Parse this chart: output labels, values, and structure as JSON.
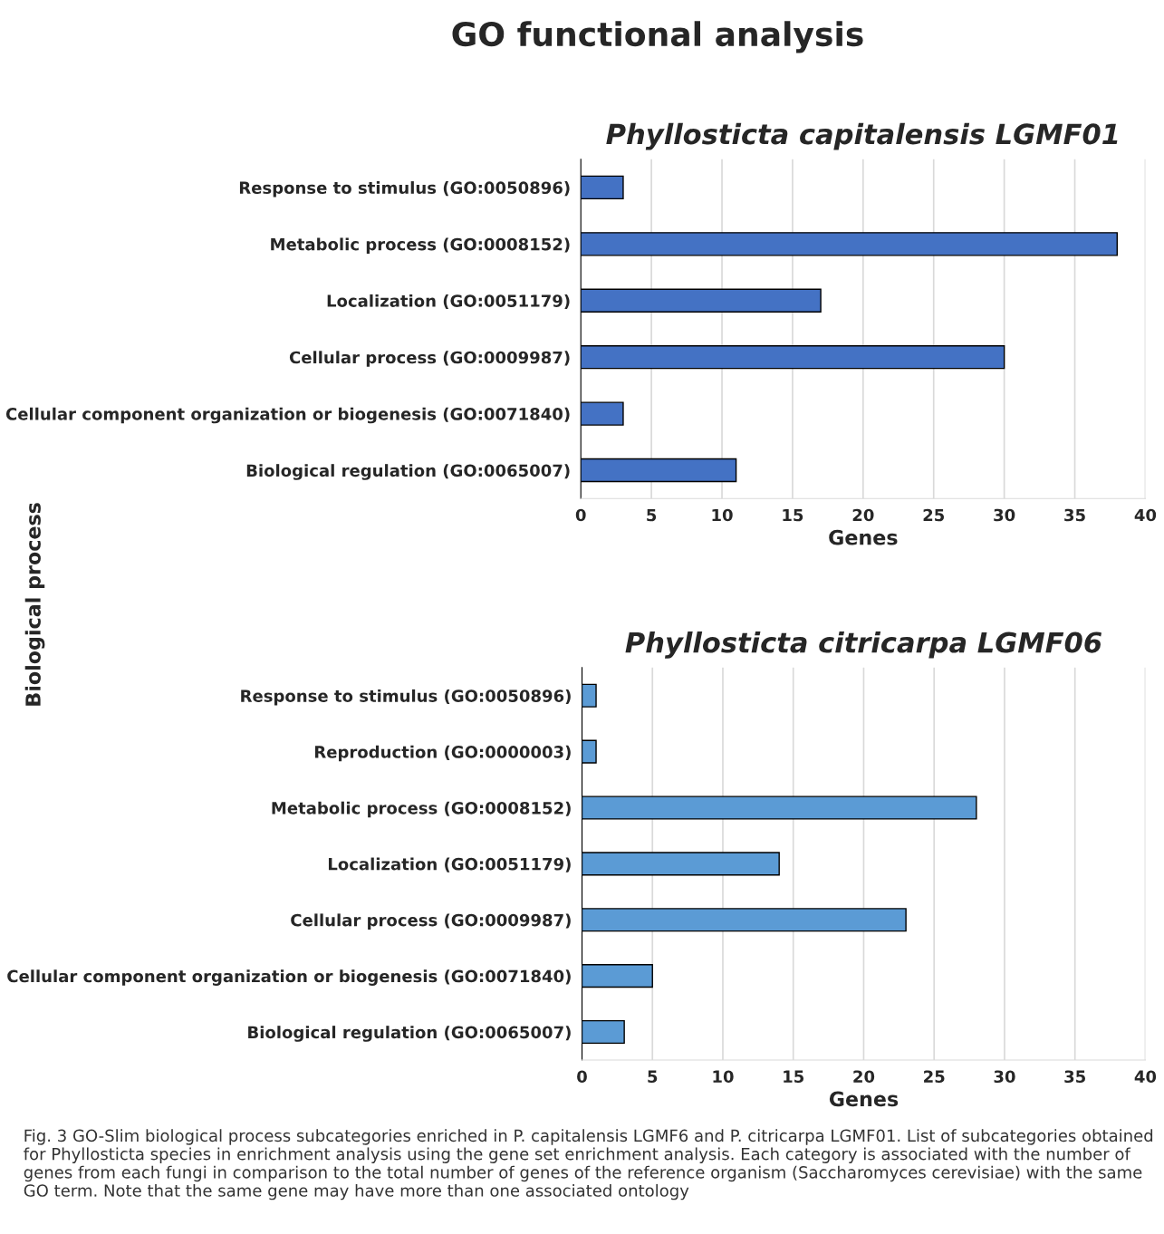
{
  "chart_data": [
    {
      "type": "bar",
      "orientation": "horizontal",
      "title": "Phyllosticta capitalensis LGMF01",
      "xlabel": "Genes",
      "ylabel": "Biological process",
      "annotations": [
        "GO functional analysis"
      ],
      "categories": [
        "Response to stimulus (GO:0050896)",
        "Metabolic process (GO:0008152)",
        "Localization (GO:0051179)",
        "Cellular process (GO:0009987)",
        "Cellular component organization or biogenesis (GO:0071840)",
        "Biological regulation (GO:0065007)"
      ],
      "series": [
        {
          "color": "#4472c4",
          "values": [
            3,
            38,
            17,
            30,
            3,
            11
          ]
        }
      ],
      "xlim": [
        0,
        40
      ],
      "xticks": [
        0,
        5,
        10,
        15,
        20,
        25,
        30,
        35,
        40
      ],
      "grid": "x",
      "legend": false
    },
    {
      "type": "bar",
      "orientation": "horizontal",
      "title": "Phyllosticta citricarpa LGMF06",
      "xlabel": "Genes",
      "annotations": [
        "Fig. 3 GO-Slim biological process subcategories enriched in P. capitalensis LGMF6 and P. citricarpa LGMF01. List of subcategories obtained for Phyllosticta species in enrichment analysis using the gene set enrichment analysis. Each category is associated with the number of genes from each fungi in comparison to the total number of genes of the reference organism (Saccharomyces cerevisiae) with the same GO term. Note that the same gene may have more than one associated ontology"
      ],
      "categories": [
        "Response to stimulus (GO:0050896)",
        "Reproduction (GO:0000003)",
        "Metabolic process (GO:0008152)",
        "Localization (GO:0051179)",
        "Cellular process (GO:0009987)",
        "Cellular component organization or biogenesis (GO:0071840)",
        "Biological regulation (GO:0065007)"
      ],
      "series": [
        {
          "color": "#5b9bd5",
          "values": [
            1,
            1,
            28,
            14,
            23,
            5,
            3
          ]
        }
      ],
      "xlim": [
        0,
        40
      ],
      "xticks": [
        0,
        5,
        10,
        15,
        20,
        25,
        30,
        35,
        40
      ],
      "grid": "x",
      "legend": false
    }
  ]
}
